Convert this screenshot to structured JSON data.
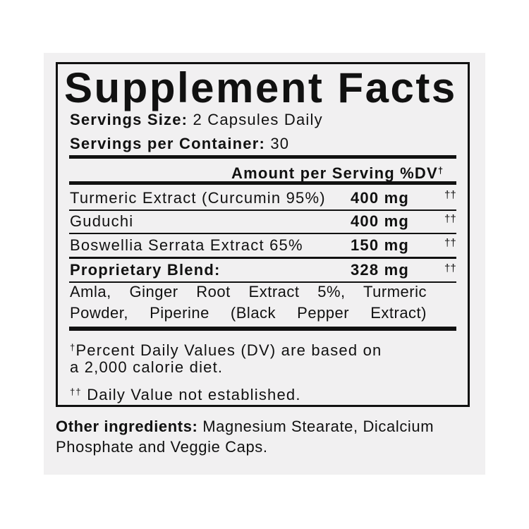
{
  "title": "Supplement Facts",
  "serving_size": {
    "label": "Servings Size:",
    "value": "2 Capsules Daily"
  },
  "servings_per_container": {
    "label": "Servings per Container:",
    "value": "30"
  },
  "header": {
    "amount": "Amount per Serving",
    "dv": "%DV",
    "dv_mark": "†"
  },
  "rows": [
    {
      "name": "Turmeric Extract (Curcumin 95%)",
      "amount": "400 mg",
      "dv": "††"
    },
    {
      "name": "Guduchi",
      "amount": "400 mg",
      "dv": "††"
    },
    {
      "name": "Boswellia Serrata Extract 65%",
      "amount": "150 mg",
      "dv": "††"
    },
    {
      "name": "Proprietary Blend:",
      "amount": "328 mg",
      "dv": "††"
    }
  ],
  "blend_line1": "Amla, Ginger Root Extract 5%, Turmeric",
  "blend_line2": "Powder, Piperine (Black Pepper Extract)",
  "footnote1": {
    "mark": "†",
    "line1": "Percent Daily Values (DV) are based on",
    "line2": "a 2,000 calorie diet."
  },
  "footnote2": {
    "mark": "††",
    "text": "Daily Value not established."
  },
  "other": {
    "label": "Other ingredients:",
    "line1": "Magnesium Stearate, Dicalcium",
    "line2": "Phosphate and Veggie Caps."
  }
}
